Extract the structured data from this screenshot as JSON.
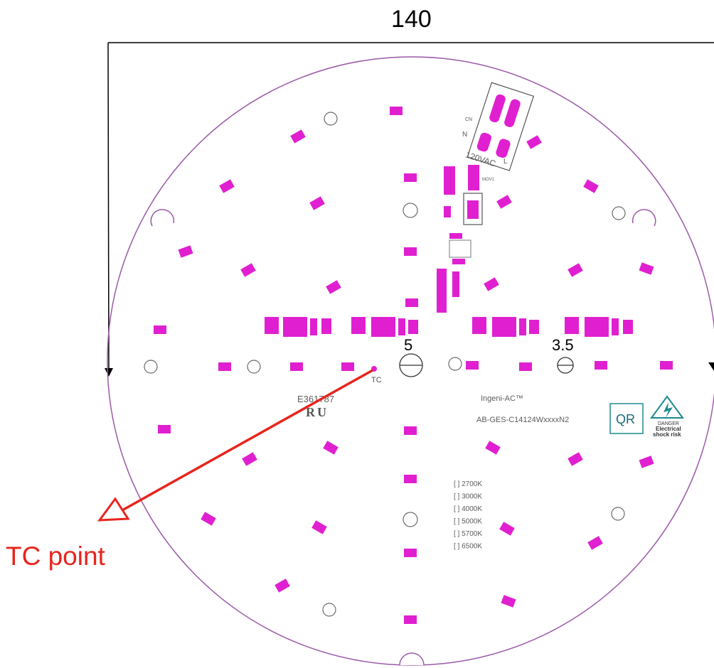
{
  "dimensions": {
    "board_diameter": "140",
    "large_hole": "5",
    "small_hole": "3.5"
  },
  "callout": {
    "label": "TC point",
    "marker_label": "TC",
    "color": "#e8241c"
  },
  "board": {
    "outline_color": "#9b59a8",
    "pad_color": "#e020d0",
    "product_name": "Ingeni-AC™",
    "part_number": "AB-GES-C14124WxxxxN2",
    "ul_file": "E361787",
    "input": "120VAC",
    "cn_label": "CN",
    "neutral_label": "N",
    "line_label": "L",
    "mov_label": "MOV1",
    "qr_label": "QR",
    "warning": {
      "danger": "DANGER",
      "line1": "Electrical",
      "line2": "shock risk"
    },
    "cct_options": [
      "[ ] 2700K",
      "[ ] 3000K",
      "[ ] 4000K",
      "[ ] 5000K",
      "[ ] 5700K",
      "[ ] 6500K"
    ]
  }
}
